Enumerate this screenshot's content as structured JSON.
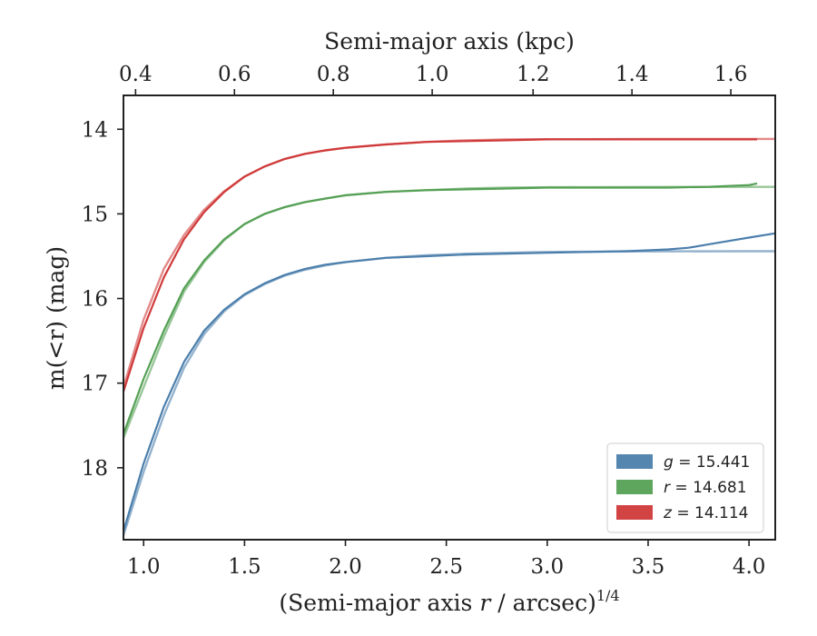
{
  "chart_data": {
    "type": "line",
    "ylabel": "m(<r) (mag)",
    "xlabel": {
      "prefix": "(Semi-major axis ",
      "var": "r",
      "suffix": " / arcsec)",
      "exponent": "1/4"
    },
    "x2label": "Semi-major axis (kpc)",
    "xlim": [
      0.9,
      4.13
    ],
    "ylim": [
      18.85,
      13.6
    ],
    "y_inverted": true,
    "xticks": [
      "1.0",
      "1.5",
      "2.0",
      "2.5",
      "3.0",
      "3.5",
      "4.0"
    ],
    "xtick_values": [
      1.0,
      1.5,
      2.0,
      2.5,
      3.0,
      3.5,
      4.0
    ],
    "yticks": [
      "14",
      "15",
      "16",
      "17",
      "18"
    ],
    "ytick_values": [
      14,
      15,
      16,
      17,
      18
    ],
    "x2ticks": [
      "0.4",
      "0.6",
      "0.8",
      "1.0",
      "1.2",
      "1.4",
      "1.6"
    ],
    "x2tick_positions": [
      0.96,
      1.45,
      1.94,
      2.43,
      2.93,
      3.42,
      3.91
    ],
    "legend_position": "lower right",
    "series": [
      {
        "name": "g = 15.441",
        "band": "g",
        "total_mag": "15.441",
        "color": "#4c7fac",
        "x": [
          0.9,
          1.0,
          1.1,
          1.2,
          1.3,
          1.4,
          1.5,
          1.6,
          1.7,
          1.8,
          1.9,
          2.0,
          2.2,
          2.4,
          2.6,
          2.8,
          3.0,
          3.2,
          3.4,
          3.5,
          3.6,
          3.7,
          3.8,
          3.9,
          4.0,
          4.13
        ],
        "values": [
          18.75,
          17.95,
          17.28,
          16.75,
          16.38,
          16.13,
          15.95,
          15.82,
          15.72,
          15.65,
          15.6,
          15.57,
          15.52,
          15.5,
          15.48,
          15.47,
          15.46,
          15.45,
          15.44,
          15.43,
          15.42,
          15.4,
          15.36,
          15.32,
          15.28,
          15.23
        ]
      },
      {
        "name": "r = 14.681",
        "band": "r",
        "total_mag": "14.681",
        "color": "#55a055",
        "x": [
          0.9,
          1.0,
          1.1,
          1.2,
          1.3,
          1.4,
          1.5,
          1.6,
          1.7,
          1.8,
          1.9,
          2.0,
          2.2,
          2.4,
          2.6,
          2.8,
          3.0,
          3.2,
          3.4,
          3.6,
          3.8,
          4.0,
          4.04
        ],
        "values": [
          17.6,
          16.95,
          16.38,
          15.88,
          15.55,
          15.3,
          15.12,
          15.0,
          14.92,
          14.86,
          14.82,
          14.78,
          14.74,
          14.72,
          14.71,
          14.7,
          14.69,
          14.69,
          14.69,
          14.69,
          14.68,
          14.66,
          14.64
        ]
      },
      {
        "name": "z = 14.114",
        "band": "z",
        "total_mag": "14.114",
        "color": "#d03a3a",
        "x": [
          0.9,
          1.0,
          1.1,
          1.2,
          1.3,
          1.4,
          1.5,
          1.6,
          1.7,
          1.8,
          1.9,
          2.0,
          2.2,
          2.4,
          2.6,
          2.8,
          3.0,
          3.2,
          3.4,
          3.6,
          3.8,
          4.0,
          4.04
        ],
        "values": [
          17.1,
          16.35,
          15.75,
          15.3,
          14.98,
          14.74,
          14.56,
          14.44,
          14.35,
          14.29,
          14.25,
          14.22,
          14.18,
          14.15,
          14.14,
          14.13,
          14.12,
          14.12,
          14.12,
          14.12,
          14.12,
          14.12,
          14.12
        ]
      }
    ],
    "model_curves": [
      {
        "band": "g",
        "color": "#4c7fac",
        "x": [
          0.9,
          1.0,
          1.1,
          1.2,
          1.3,
          1.4,
          1.5,
          1.6,
          1.7,
          1.8,
          1.9,
          2.0,
          2.2,
          2.4,
          2.6,
          2.8,
          3.0,
          3.5,
          4.0,
          4.13
        ],
        "values": [
          18.8,
          18.05,
          17.38,
          16.82,
          16.42,
          16.15,
          15.96,
          15.83,
          15.73,
          15.66,
          15.61,
          15.57,
          15.52,
          15.49,
          15.47,
          15.46,
          15.45,
          15.443,
          15.441,
          15.441
        ]
      },
      {
        "band": "r",
        "color": "#55a055",
        "x": [
          0.9,
          1.0,
          1.1,
          1.2,
          1.3,
          1.4,
          1.5,
          1.6,
          1.7,
          1.8,
          1.9,
          2.0,
          2.2,
          2.4,
          2.6,
          2.8,
          3.0,
          3.5,
          4.0,
          4.13
        ],
        "values": [
          17.65,
          17.05,
          16.45,
          15.92,
          15.57,
          15.31,
          15.12,
          15.0,
          14.92,
          14.86,
          14.82,
          14.78,
          14.74,
          14.72,
          14.7,
          14.69,
          14.685,
          14.682,
          14.681,
          14.681
        ]
      },
      {
        "band": "z",
        "color": "#d03a3a",
        "x": [
          0.9,
          1.0,
          1.1,
          1.2,
          1.3,
          1.4,
          1.5,
          1.6,
          1.7,
          1.8,
          1.9,
          2.0,
          2.2,
          2.4,
          2.6,
          2.8,
          3.0,
          3.5,
          4.0,
          4.13
        ],
        "values": [
          17.05,
          16.25,
          15.65,
          15.25,
          14.95,
          14.73,
          14.56,
          14.44,
          14.35,
          14.29,
          14.25,
          14.22,
          14.18,
          14.15,
          14.13,
          14.12,
          14.117,
          14.115,
          14.114,
          14.114
        ]
      }
    ]
  }
}
